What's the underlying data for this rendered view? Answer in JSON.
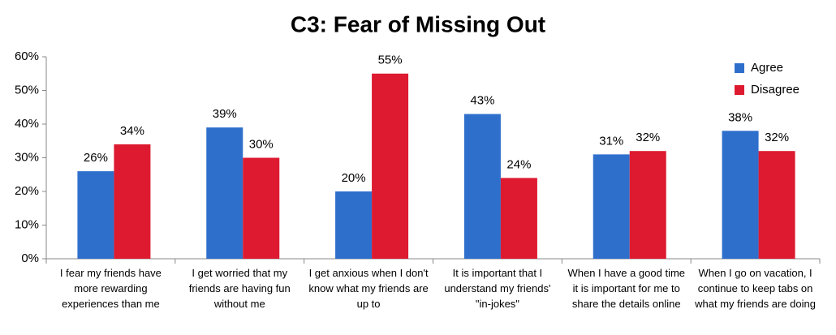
{
  "chart_data": {
    "type": "bar",
    "title": "C3:  Fear of Missing Out",
    "categories": [
      "I fear my friends have more rewarding experiences than me",
      "I get worried that my friends are having fun without me",
      "I get anxious when I don't know what my friends are up to",
      "It is important that I understand my friends' \"in-jokes\"",
      "When I have a good time it is important for me to share the details online",
      "When I go on vacation, I continue to keep tabs on what my friends are doing"
    ],
    "series": [
      {
        "name": "Agree",
        "color": "#2f6fcc",
        "values": [
          26,
          39,
          20,
          43,
          31,
          38
        ],
        "value_labels": [
          "26%",
          "39%",
          "20%",
          "43%",
          "31%",
          "38%"
        ]
      },
      {
        "name": "Disagree",
        "color": "#dd1a30",
        "values": [
          34,
          30,
          55,
          24,
          32,
          32
        ],
        "value_labels": [
          "34%",
          "30%",
          "55%",
          "24%",
          "32%",
          "32%"
        ]
      }
    ],
    "ylim": [
      0,
      60
    ],
    "yticks": [
      {
        "value": 0,
        "label": "0%"
      },
      {
        "value": 10,
        "label": "10%"
      },
      {
        "value": 20,
        "label": "20%"
      },
      {
        "value": 30,
        "label": "30%"
      },
      {
        "value": 40,
        "label": "40%"
      },
      {
        "value": 50,
        "label": "50%"
      },
      {
        "value": 60,
        "label": "60%"
      }
    ],
    "grid": false,
    "legend": "top-right"
  }
}
